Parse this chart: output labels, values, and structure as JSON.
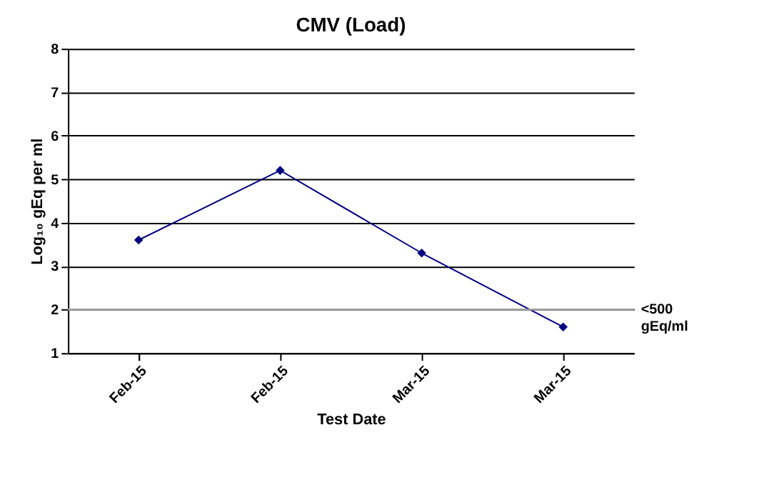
{
  "chart_data": {
    "type": "line",
    "title": "CMV (Load)",
    "xlabel": "Test Date",
    "ylabel": "Log₁₀ gEq per ml",
    "categories": [
      "Feb-15",
      "Feb-15",
      "Mar-15",
      "Mar-15"
    ],
    "series": [
      {
        "color": "#000080",
        "values": [
          3.6,
          5.2,
          3.3,
          1.6
        ]
      }
    ],
    "ylim": [
      1,
      8
    ],
    "yticks": [
      1,
      2,
      3,
      4,
      5,
      6,
      7,
      8
    ],
    "grid": "y",
    "marker": "diamond",
    "line_style": "solid",
    "ref_lines": [
      {
        "axis": "y",
        "value": 2,
        "label": "<500 gEq/ml",
        "color": "#a0a0a0"
      }
    ]
  }
}
